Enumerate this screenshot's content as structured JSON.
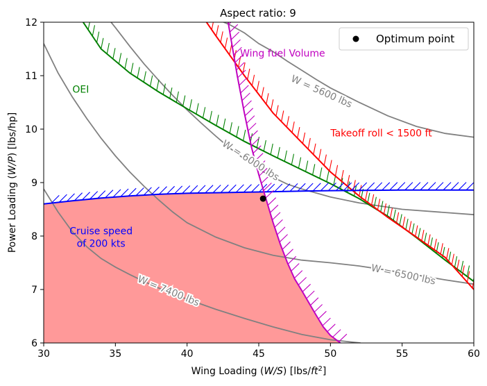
{
  "chart_data": {
    "type": "line",
    "title": "Aspect ratio: 9",
    "xlabel_main": "Wing Loading (",
    "xlabel_var": "W/S",
    "xlabel_units": ") [lbs/",
    "xlabel_ft": "ft",
    "xlabel_sup": "2",
    "xlabel_end": "]",
    "ylabel_main": "Power Loading (",
    "ylabel_var": "W/P",
    "ylabel_end": ") [lbs/hp]",
    "xlim": [
      30,
      60
    ],
    "ylim": [
      6,
      12
    ],
    "xticks": [
      "30",
      "35",
      "40",
      "45",
      "50",
      "55",
      "60"
    ],
    "yticks": [
      "6",
      "7",
      "8",
      "9",
      "10",
      "11",
      "12"
    ],
    "legend": {
      "label": "Optimum point",
      "location": "upper right"
    },
    "optimum_point": {
      "x": 45.3,
      "y": 8.7
    },
    "weight_contours": [
      {
        "label": "W = 5600 lbs",
        "color": "#808080",
        "points": [
          [
            41.7,
            12.1
          ],
          [
            43,
            11.95
          ],
          [
            44,
            11.8
          ],
          [
            45,
            11.6
          ],
          [
            46,
            11.45
          ],
          [
            47,
            11.27
          ],
          [
            48,
            11.1
          ],
          [
            49,
            10.93
          ],
          [
            50,
            10.77
          ],
          [
            52,
            10.5
          ],
          [
            54,
            10.25
          ],
          [
            56,
            10.05
          ],
          [
            58,
            9.92
          ],
          [
            60,
            9.85
          ]
        ]
      },
      {
        "label": "W = 6000 lbs",
        "color": "#808080",
        "points": [
          [
            34.4,
            12.1
          ],
          [
            35,
            11.9
          ],
          [
            36,
            11.55
          ],
          [
            37,
            11.22
          ],
          [
            38,
            10.92
          ],
          [
            39,
            10.63
          ],
          [
            40,
            10.36
          ],
          [
            41,
            10.11
          ],
          [
            42,
            9.87
          ],
          [
            43,
            9.64
          ],
          [
            44,
            9.44
          ],
          [
            45,
            9.25
          ],
          [
            46,
            9.1
          ],
          [
            47,
            8.97
          ],
          [
            48,
            8.88
          ],
          [
            50,
            8.73
          ],
          [
            52,
            8.62
          ],
          [
            55,
            8.5
          ],
          [
            60,
            8.4
          ]
        ]
      },
      {
        "label": "W = 6500 lbs",
        "color": "#808080",
        "points": [
          [
            30,
            11.6
          ],
          [
            31,
            11.05
          ],
          [
            32,
            10.6
          ],
          [
            33,
            10.2
          ],
          [
            34,
            9.83
          ],
          [
            35,
            9.5
          ],
          [
            36,
            9.2
          ],
          [
            37,
            8.93
          ],
          [
            38,
            8.68
          ],
          [
            39,
            8.45
          ],
          [
            40,
            8.25
          ],
          [
            42,
            7.98
          ],
          [
            44,
            7.78
          ],
          [
            46,
            7.64
          ],
          [
            48,
            7.55
          ],
          [
            50,
            7.5
          ],
          [
            52,
            7.44
          ],
          [
            54,
            7.36
          ],
          [
            56,
            7.27
          ],
          [
            58,
            7.18
          ],
          [
            60,
            7.1
          ]
        ]
      },
      {
        "label": "W = 7400 lbs",
        "color": "#808080",
        "points": [
          [
            30,
            8.88
          ],
          [
            31,
            8.45
          ],
          [
            32,
            8.08
          ],
          [
            33,
            7.8
          ],
          [
            34,
            7.58
          ],
          [
            35,
            7.42
          ],
          [
            36,
            7.28
          ],
          [
            37,
            7.15
          ],
          [
            38,
            7.03
          ],
          [
            39,
            6.92
          ],
          [
            40,
            6.82
          ],
          [
            42,
            6.63
          ],
          [
            44,
            6.46
          ],
          [
            46,
            6.3
          ],
          [
            48,
            6.16
          ],
          [
            50,
            6.06
          ],
          [
            52.1,
            6.0
          ]
        ]
      }
    ],
    "contour_labels": [
      {
        "text": "W = 5600 lbs",
        "x": 47.2,
        "y": 10.9,
        "angle": 24
      },
      {
        "text": "W = 6000 lbs",
        "x": 42.4,
        "y": 9.7,
        "angle": 33
      },
      {
        "text": "W = 6500 lbs",
        "x": 52.8,
        "y": 7.35,
        "angle": 12
      },
      {
        "text": "W = 7400 lbs",
        "x": 36.5,
        "y": 7.15,
        "angle": 22
      }
    ],
    "constraints": [
      {
        "name": "OEI",
        "color": "#008000",
        "points": [
          [
            32.5,
            12.1
          ],
          [
            34,
            11.5
          ],
          [
            36,
            11.05
          ],
          [
            38,
            10.7
          ],
          [
            40,
            10.38
          ],
          [
            42,
            10.07
          ],
          [
            44,
            9.77
          ],
          [
            46,
            9.5
          ],
          [
            48,
            9.24
          ],
          [
            50,
            8.98
          ],
          [
            52,
            8.7
          ],
          [
            54,
            8.37
          ],
          [
            56,
            7.97
          ],
          [
            58,
            7.55
          ],
          [
            60,
            7.15
          ]
        ],
        "label": "OEI",
        "label_x": 32,
        "label_y": 10.75
      },
      {
        "name": "Takeoff roll",
        "color": "#ff0000",
        "points": [
          [
            41.1,
            12.1
          ],
          [
            42,
            11.75
          ],
          [
            44,
            11.0
          ],
          [
            46,
            10.3
          ],
          [
            48,
            9.75
          ],
          [
            50,
            9.2
          ],
          [
            52,
            8.75
          ],
          [
            54,
            8.35
          ],
          [
            56,
            7.98
          ],
          [
            58,
            7.6
          ],
          [
            60,
            7.0
          ]
        ],
        "label": "Takeoff roll < 1500 ft",
        "label_x": 50,
        "label_y": 9.93
      },
      {
        "name": "Cruise speed",
        "color": "#0000ff",
        "points": [
          [
            30,
            8.6
          ],
          [
            32,
            8.66
          ],
          [
            34,
            8.71
          ],
          [
            36,
            8.75
          ],
          [
            38,
            8.78
          ],
          [
            40,
            8.8
          ],
          [
            42,
            8.81
          ],
          [
            44,
            8.82
          ],
          [
            46,
            8.83
          ],
          [
            48,
            8.84
          ],
          [
            50,
            8.85
          ],
          [
            55,
            8.86
          ],
          [
            60,
            8.86
          ]
        ],
        "label_line1": "Cruise speed",
        "label_line2": "of 200 kts",
        "label_x": 34,
        "label_y": 8.1
      },
      {
        "name": "Wing fuel Volume",
        "color": "#c000c0",
        "points": [
          [
            42.8,
            12.1
          ],
          [
            43.5,
            11.0
          ],
          [
            44,
            10.3
          ],
          [
            44.5,
            9.65
          ],
          [
            45,
            9.15
          ],
          [
            45.5,
            8.7
          ],
          [
            46,
            8.25
          ],
          [
            46.5,
            7.85
          ],
          [
            47,
            7.5
          ],
          [
            47.5,
            7.2
          ],
          [
            48,
            6.98
          ],
          [
            48.5,
            6.75
          ],
          [
            49,
            6.52
          ],
          [
            49.5,
            6.3
          ],
          [
            50,
            6.14
          ],
          [
            50.7,
            6.0
          ]
        ],
        "label": "Wing fuel Volume",
        "label_x": 43.7,
        "label_y": 11.42
      }
    ],
    "feasible_region": {
      "color": "#ff9999",
      "points": [
        [
          30,
          8.6
        ],
        [
          32,
          8.66
        ],
        [
          34,
          8.71
        ],
        [
          36,
          8.75
        ],
        [
          38,
          8.78
        ],
        [
          40,
          8.8
        ],
        [
          42,
          8.81
        ],
        [
          44,
          8.82
        ],
        [
          45.3,
          8.83
        ],
        [
          45.5,
          8.7
        ],
        [
          46,
          8.25
        ],
        [
          46.5,
          7.85
        ],
        [
          47,
          7.5
        ],
        [
          47.5,
          7.2
        ],
        [
          48,
          6.98
        ],
        [
          48.5,
          6.75
        ],
        [
          49,
          6.52
        ],
        [
          49.5,
          6.3
        ],
        [
          50,
          6.14
        ],
        [
          50.7,
          6.0
        ],
        [
          30,
          6.0
        ]
      ]
    }
  }
}
